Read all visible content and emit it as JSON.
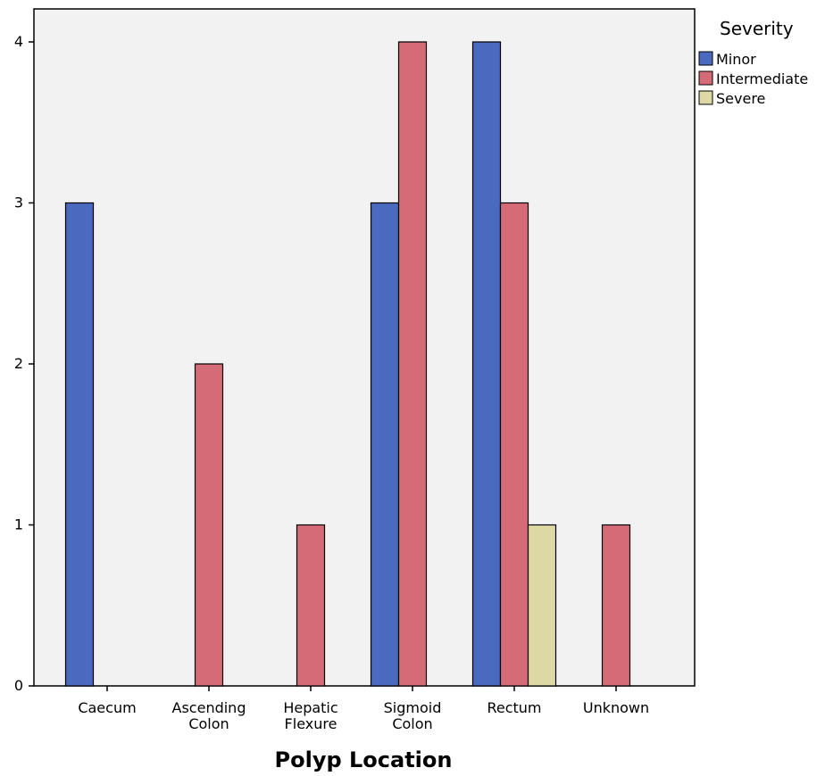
{
  "chart_data": {
    "type": "bar",
    "title": "",
    "xlabel": "Polyp Location",
    "ylabel": "",
    "categories": [
      [
        "Caecum"
      ],
      [
        "Ascending",
        "Colon"
      ],
      [
        "Hepatic",
        "Flexure"
      ],
      [
        "Sigmoid",
        "Colon"
      ],
      [
        "Rectum"
      ],
      [
        "Unknown"
      ]
    ],
    "series": [
      {
        "name": "Minor",
        "color": "#4a6abf",
        "values": [
          3,
          0,
          0,
          3,
          4,
          0
        ]
      },
      {
        "name": "Intermediate",
        "color": "#d56b77",
        "values": [
          0,
          2,
          1,
          4,
          3,
          1
        ]
      },
      {
        "name": "Severe",
        "color": "#ddd8a4",
        "values": [
          0,
          0,
          0,
          0,
          1,
          0
        ]
      }
    ],
    "ylim": [
      0,
      4
    ],
    "yticks": [
      "0",
      "1",
      "2",
      "3",
      "4"
    ],
    "grid": false,
    "legend": {
      "title": "Severity",
      "placement": "right-top"
    },
    "plot_background": "#f2f2f2"
  }
}
